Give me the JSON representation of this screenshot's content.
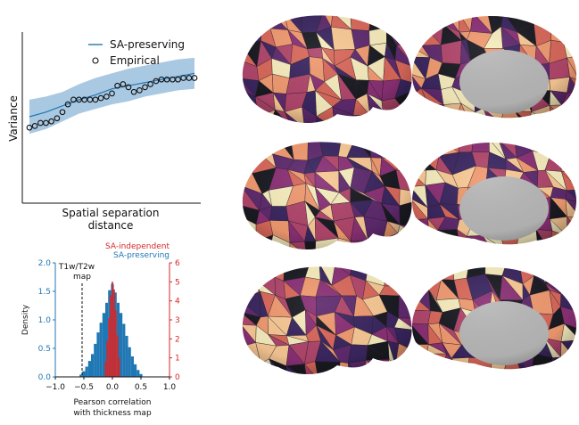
{
  "chart_data": [
    {
      "type": "scatter",
      "xlabel": "Spatial separation distance",
      "xlabel_lines": [
        "Spatial separation",
        "distance"
      ],
      "ylabel": "Variance",
      "ticks_shown": false,
      "legend": {
        "placement": "top-right",
        "entries": [
          "SA-preserving",
          "Empirical"
        ]
      },
      "xlim": [
        0,
        1
      ],
      "ylim": [
        0,
        1
      ],
      "series": [
        {
          "name": "SA-preserving",
          "kind": "line-with-band",
          "color": "#1f77b4",
          "band_color": "#a9c8e2",
          "x": [
            0.0,
            0.1,
            0.2,
            0.3,
            0.4,
            0.5,
            0.6,
            0.7,
            0.8,
            0.9,
            1.0
          ],
          "y": [
            0.5,
            0.53,
            0.57,
            0.61,
            0.64,
            0.68,
            0.7,
            0.72,
            0.74,
            0.76,
            0.78
          ],
          "lower": [
            0.39,
            0.42,
            0.47,
            0.52,
            0.55,
            0.58,
            0.6,
            0.63,
            0.65,
            0.67,
            0.68
          ],
          "upper": [
            0.61,
            0.63,
            0.66,
            0.71,
            0.75,
            0.78,
            0.81,
            0.83,
            0.85,
            0.87,
            0.88
          ]
        },
        {
          "name": "Empirical",
          "kind": "markers",
          "x": [
            0.0,
            0.033,
            0.067,
            0.1,
            0.133,
            0.167,
            0.2,
            0.233,
            0.267,
            0.3,
            0.333,
            0.367,
            0.4,
            0.433,
            0.467,
            0.5,
            0.533,
            0.567,
            0.6,
            0.633,
            0.667,
            0.7,
            0.733,
            0.767,
            0.8,
            0.833,
            0.867,
            0.9,
            0.933,
            0.967,
            1.0
          ],
          "y": [
            0.43,
            0.44,
            0.46,
            0.46,
            0.47,
            0.49,
            0.53,
            0.58,
            0.61,
            0.61,
            0.61,
            0.61,
            0.61,
            0.62,
            0.63,
            0.65,
            0.7,
            0.71,
            0.69,
            0.66,
            0.67,
            0.69,
            0.71,
            0.73,
            0.74,
            0.74,
            0.74,
            0.74,
            0.75,
            0.75,
            0.75
          ]
        }
      ]
    },
    {
      "type": "histogram",
      "xlabel": "Pearson correlation with thickness map",
      "xlabel_lines": [
        "Pearson correlation",
        "with thickness map"
      ],
      "ylabel": "Density",
      "left_axis": {
        "ylim": [
          0.0,
          2.0
        ],
        "ticks": [
          "0.0",
          "0.5",
          "1.0",
          "1.5",
          "2.0"
        ],
        "color": "#1f77b4"
      },
      "right_axis": {
        "ylim": [
          0,
          6
        ],
        "ticks": [
          "0",
          "1",
          "2",
          "3",
          "4",
          "5",
          "6"
        ],
        "color": "#d62728"
      },
      "xlim": [
        -1.0,
        1.0
      ],
      "xticks": [
        "−1.0",
        "−0.5",
        "0.0",
        "0.5",
        "1.0"
      ],
      "xtick_values": [
        -1.0,
        -0.5,
        0.0,
        0.5,
        1.0
      ],
      "legend": {
        "placement": "top-right",
        "entries": [
          "SA-independent",
          "SA-preserving"
        ]
      },
      "annotation": {
        "lines": [
          "T1w/T2w",
          "map"
        ],
        "x": -0.55
      },
      "series": [
        {
          "name": "SA-preserving",
          "axis": "left",
          "color": "#1f77b4",
          "bins": [
            [
              -0.55,
              0.04
            ],
            [
              -0.5,
              0.1
            ],
            [
              -0.45,
              0.18
            ],
            [
              -0.4,
              0.28
            ],
            [
              -0.35,
              0.4
            ],
            [
              -0.3,
              0.58
            ],
            [
              -0.25,
              0.78
            ],
            [
              -0.2,
              0.95
            ],
            [
              -0.15,
              1.12
            ],
            [
              -0.1,
              1.3
            ],
            [
              -0.05,
              1.52
            ],
            [
              0.0,
              1.63
            ],
            [
              0.05,
              1.48
            ],
            [
              0.1,
              1.3
            ],
            [
              0.15,
              1.12
            ],
            [
              0.2,
              0.93
            ],
            [
              0.25,
              0.72
            ],
            [
              0.3,
              0.52
            ],
            [
              0.35,
              0.36
            ],
            [
              0.4,
              0.22
            ],
            [
              0.45,
              0.12
            ],
            [
              0.5,
              0.05
            ]
          ],
          "bin_width": 0.05
        },
        {
          "name": "SA-independent",
          "axis": "right",
          "color": "#d62728",
          "bins": [
            [
              -0.12,
              0.8
            ],
            [
              -0.09,
              1.9
            ],
            [
              -0.06,
              3.1
            ],
            [
              -0.03,
              4.3
            ],
            [
              0.0,
              5.0
            ],
            [
              0.03,
              4.6
            ],
            [
              0.06,
              3.5
            ],
            [
              0.09,
              2.2
            ],
            [
              0.12,
              1.0
            ]
          ],
          "bin_width": 0.03
        }
      ]
    }
  ],
  "brains": {
    "rows": 3,
    "views": [
      "lateral",
      "medial"
    ],
    "palette": [
      "#1a1a22",
      "#3a2660",
      "#5e2a6e",
      "#8a3075",
      "#b0466b",
      "#d8685a",
      "#f09a70",
      "#f8c894",
      "#f6ecbd"
    ],
    "medial_wall_color": "#b8b8b8"
  }
}
